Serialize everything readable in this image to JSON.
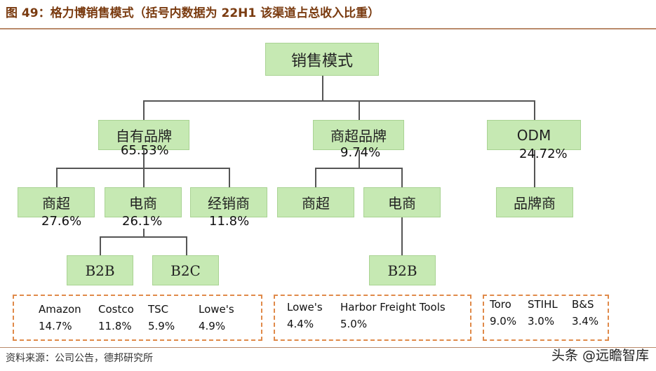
{
  "header": {
    "title": "图 49：格力博销售模式（括号内数据为 22H1 该渠道占总收入比重）"
  },
  "diagram": {
    "root": {
      "label": "销售模式"
    },
    "own_brand": {
      "label": "自有品牌",
      "share": "65.53%"
    },
    "supermarket_brand": {
      "label": "商超品牌",
      "share": "9.74%"
    },
    "odm": {
      "label": "ODM",
      "share": "24.72%"
    },
    "own_supermarket": {
      "label": "商超",
      "share": "27.6%"
    },
    "own_ecommerce": {
      "label": "电商",
      "share": "26.1%"
    },
    "own_distributor": {
      "label": "经销商",
      "share": "11.8%"
    },
    "sm_supermarket": {
      "label": "商超"
    },
    "sm_ecommerce": {
      "label": "电商"
    },
    "odm_brand": {
      "label": "品牌商"
    },
    "own_b2b": {
      "label": "B2B"
    },
    "own_b2c": {
      "label": "B2C"
    },
    "sm_b2b": {
      "label": "B2B"
    }
  },
  "customers": {
    "group1": [
      {
        "name": "Amazon",
        "share": "14.7%"
      },
      {
        "name": "Costco",
        "share": "11.8%"
      },
      {
        "name": "TSC",
        "share": "5.9%"
      },
      {
        "name": "Lowe's",
        "share": "4.9%"
      }
    ],
    "group2": [
      {
        "name": "Lowe's",
        "share": "4.4%"
      },
      {
        "name": "Harbor Freight Tools",
        "share": "5.0%"
      }
    ],
    "group3": [
      {
        "name": "Toro",
        "share": "9.0%"
      },
      {
        "name": "STIHL",
        "share": "3.0%"
      },
      {
        "name": "B&S",
        "share": "3.4%"
      }
    ]
  },
  "footer": {
    "source": "资料来源：公司公告，德邦研究所",
    "watermark": "头条 @远瞻智库"
  }
}
